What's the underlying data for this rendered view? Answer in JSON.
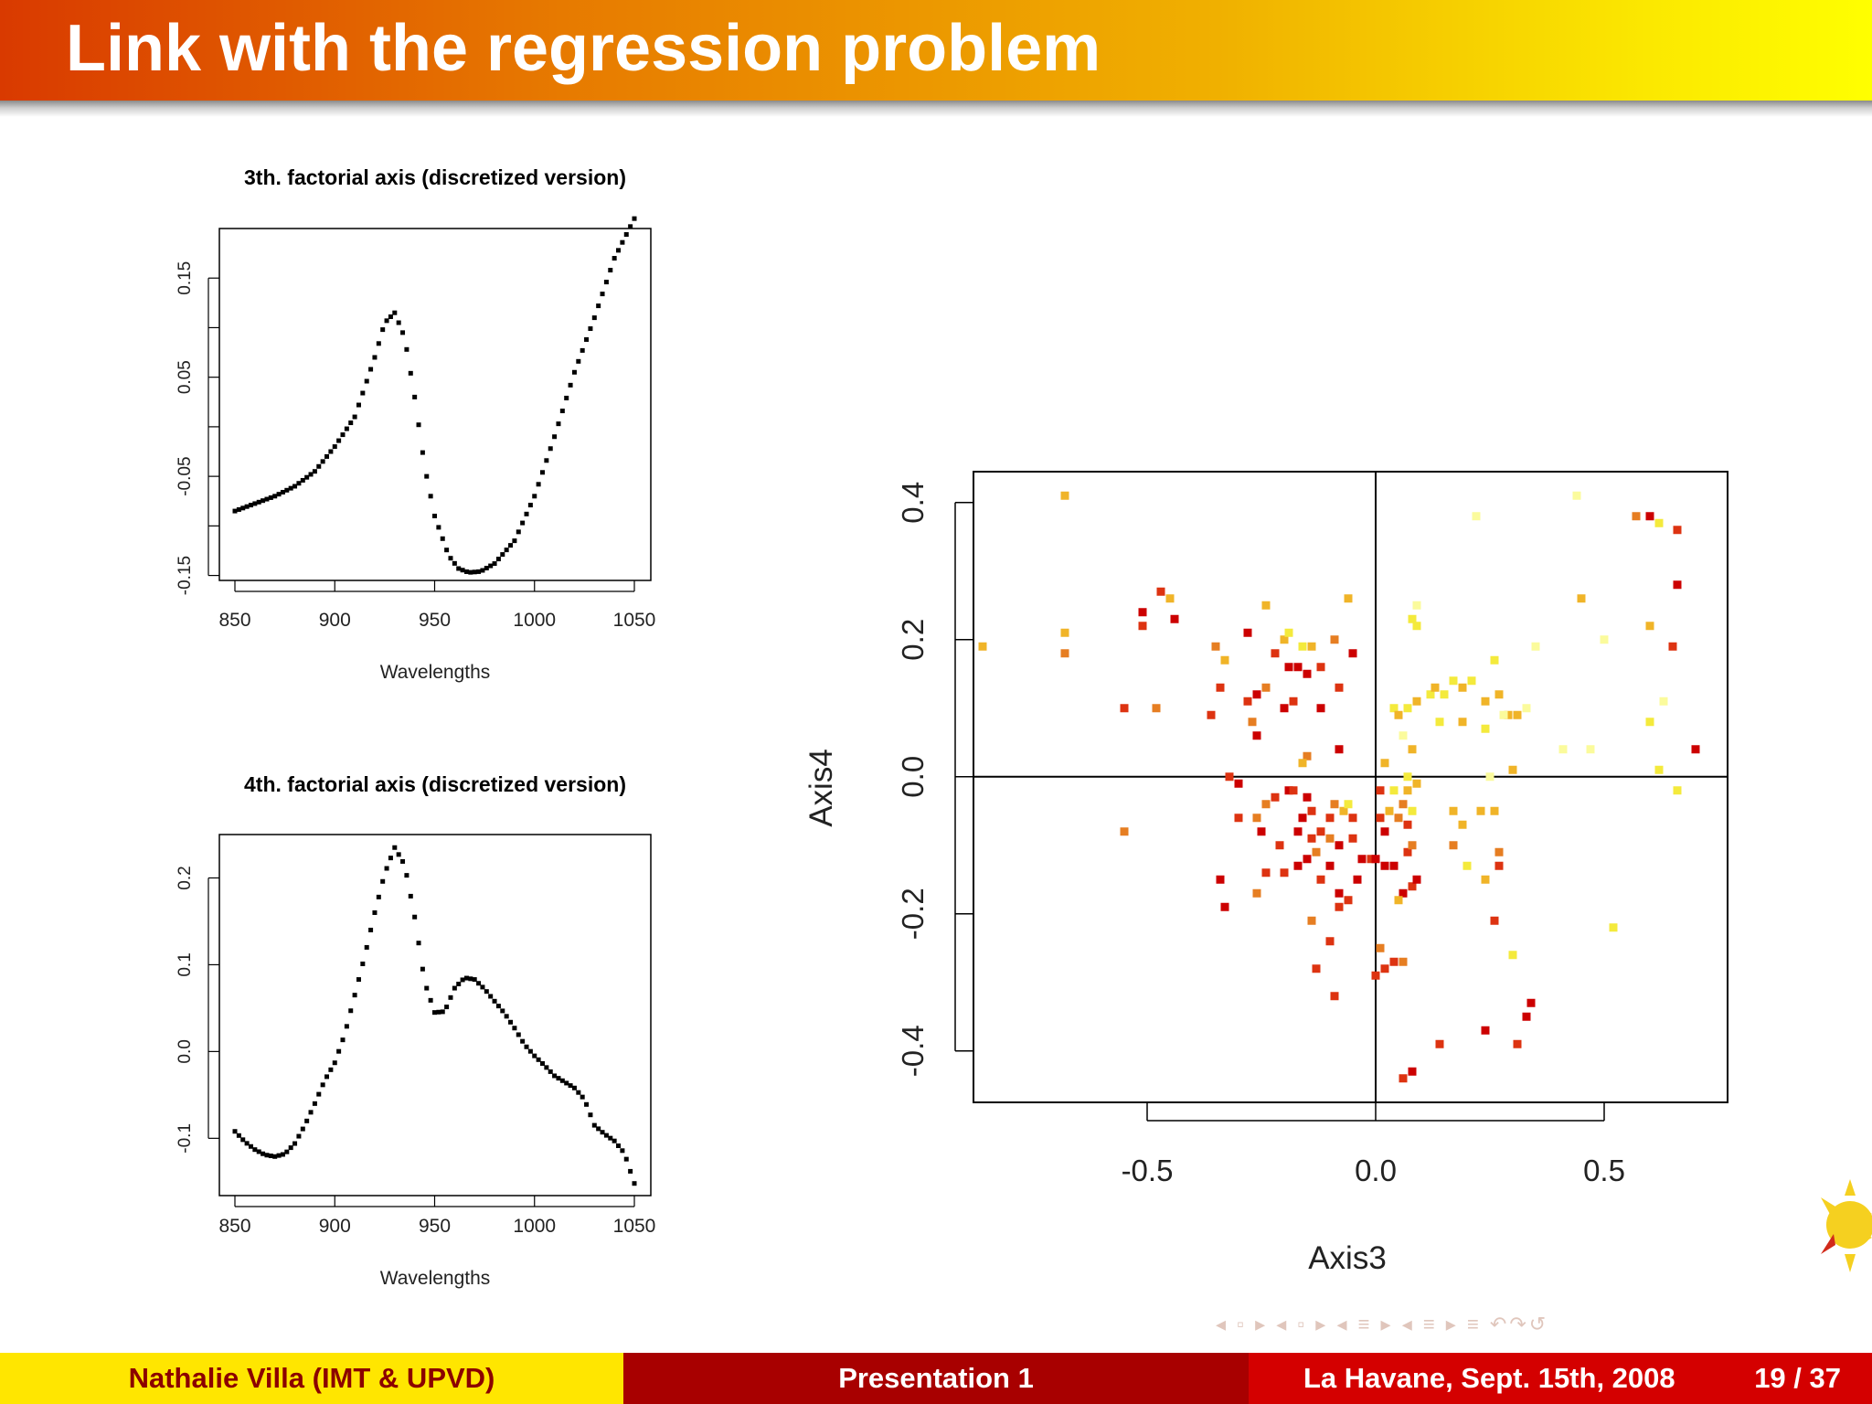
{
  "slide": {
    "title": "Link with the regression problem"
  },
  "footer": {
    "author": "Nathalie Villa  (IMT & UPVD)",
    "presentation": "Presentation 1",
    "place_date": "La Havane, Sept. 15th, 2008",
    "page": "19 / 37"
  },
  "navigation": {
    "symbols": "◂ ▫ ▸ ◂ ▫ ▸ ◂ ≡ ▸ ◂ ≡ ▸  ≡  ↶↷↺"
  },
  "colors": {
    "title_gradient_start": "#d93a00",
    "title_gradient_end": "#ffff00",
    "footer_left": "#ffe600",
    "footer_mid": "#a80000",
    "footer_right": "#d40000",
    "footer_left_text": "#8b0000"
  },
  "chart_data": [
    {
      "type": "scatter",
      "title": "3th. factorial axis (discretized version)",
      "xlabel": "Wavelengths",
      "ylabel": "",
      "xlim": [
        850,
        1050
      ],
      "ylim": [
        -0.155,
        0.2
      ],
      "xticks": [
        "850",
        "900",
        "950",
        "1000",
        "1050"
      ],
      "yticks": [
        "-0.15",
        "-0.05",
        "0.05",
        "0.15"
      ],
      "yticks_minor": [
        -0.1,
        0.0,
        0.1
      ],
      "curve_knots": [
        [
          850,
          -0.085
        ],
        [
          870,
          -0.07
        ],
        [
          880,
          -0.06
        ],
        [
          890,
          -0.045
        ],
        [
          900,
          -0.02
        ],
        [
          910,
          0.01
        ],
        [
          920,
          0.07
        ],
        [
          925,
          0.105
        ],
        [
          930,
          0.115
        ],
        [
          935,
          0.09
        ],
        [
          940,
          0.03
        ],
        [
          945,
          -0.04
        ],
        [
          950,
          -0.09
        ],
        [
          957,
          -0.13
        ],
        [
          962,
          -0.143
        ],
        [
          967,
          -0.147
        ],
        [
          973,
          -0.146
        ],
        [
          980,
          -0.138
        ],
        [
          990,
          -0.115
        ],
        [
          1000,
          -0.07
        ],
        [
          1010,
          -0.01
        ],
        [
          1020,
          0.055
        ],
        [
          1030,
          0.11
        ],
        [
          1040,
          0.17
        ],
        [
          1050,
          0.21
        ]
      ]
    },
    {
      "type": "scatter",
      "title": "4th. factorial axis (discretized version)",
      "xlabel": "Wavelengths",
      "ylabel": "",
      "xlim": [
        850,
        1050
      ],
      "ylim": [
        -0.166,
        0.25
      ],
      "xticks": [
        "850",
        "900",
        "950",
        "1000",
        "1050"
      ],
      "yticks": [
        "-0.1",
        "0.0",
        "0.1",
        "0.2"
      ],
      "curve_knots": [
        [
          850,
          -0.092
        ],
        [
          855,
          -0.104
        ],
        [
          860,
          -0.113
        ],
        [
          865,
          -0.119
        ],
        [
          870,
          -0.121
        ],
        [
          875,
          -0.118
        ],
        [
          880,
          -0.106
        ],
        [
          885,
          -0.085
        ],
        [
          890,
          -0.06
        ],
        [
          895,
          -0.033
        ],
        [
          900,
          -0.013
        ],
        [
          905,
          0.02
        ],
        [
          910,
          0.065
        ],
        [
          915,
          0.11
        ],
        [
          920,
          0.16
        ],
        [
          925,
          0.205
        ],
        [
          930,
          0.235
        ],
        [
          935,
          0.215
        ],
        [
          940,
          0.155
        ],
        [
          945,
          0.08
        ],
        [
          950,
          0.045
        ],
        [
          955,
          0.046
        ],
        [
          960,
          0.073
        ],
        [
          965,
          0.085
        ],
        [
          970,
          0.083
        ],
        [
          975,
          0.072
        ],
        [
          980,
          0.058
        ],
        [
          985,
          0.044
        ],
        [
          990,
          0.027
        ],
        [
          995,
          0.008
        ],
        [
          1000,
          -0.005
        ],
        [
          1005,
          -0.016
        ],
        [
          1010,
          -0.028
        ],
        [
          1015,
          -0.035
        ],
        [
          1020,
          -0.042
        ],
        [
          1025,
          -0.055
        ],
        [
          1030,
          -0.085
        ],
        [
          1035,
          -0.095
        ],
        [
          1040,
          -0.103
        ],
        [
          1045,
          -0.117
        ],
        [
          1050,
          -0.152
        ]
      ]
    },
    {
      "type": "scatter",
      "title": "",
      "xlabel": "Axis3",
      "ylabel": "Axis4",
      "xlim": [
        -0.88,
        0.77
      ],
      "ylim": [
        -0.475,
        0.445
      ],
      "xticks": [
        -0.5,
        0.0,
        0.5
      ],
      "xtick_labels": [
        "-0.5",
        "0.0",
        "0.5"
      ],
      "yticks": [
        -0.4,
        -0.2,
        0.0,
        0.2,
        0.4
      ],
      "ytick_labels": [
        "-0.4",
        "-0.2",
        "0.0",
        "0.2",
        "0.4"
      ],
      "reference_lines": {
        "x": 0,
        "y": 0
      },
      "point_colors": [
        "#cc0000",
        "#dd3311",
        "#e67e22",
        "#f0b428",
        "#f4ea3c",
        "#fbfb9c"
      ],
      "points": [
        [
          -0.68,
          0.41,
          3
        ],
        [
          -0.86,
          0.19,
          3
        ],
        [
          -0.68,
          0.21,
          3
        ],
        [
          -0.68,
          0.18,
          2
        ],
        [
          -0.47,
          0.27,
          1
        ],
        [
          -0.45,
          0.26,
          3
        ],
        [
          -0.51,
          0.24,
          0
        ],
        [
          -0.51,
          0.22,
          1
        ],
        [
          -0.44,
          0.23,
          0
        ],
        [
          -0.55,
          0.1,
          1
        ],
        [
          -0.48,
          0.1,
          2
        ],
        [
          -0.55,
          -0.08,
          2
        ],
        [
          -0.35,
          0.19,
          2
        ],
        [
          -0.33,
          0.17,
          3
        ],
        [
          -0.34,
          0.13,
          1
        ],
        [
          -0.36,
          0.09,
          1
        ],
        [
          -0.28,
          0.21,
          0
        ],
        [
          -0.24,
          0.25,
          3
        ],
        [
          -0.24,
          0.13,
          2
        ],
        [
          -0.26,
          0.12,
          0
        ],
        [
          -0.28,
          0.11,
          1
        ],
        [
          -0.27,
          0.08,
          2
        ],
        [
          -0.26,
          0.06,
          0
        ],
        [
          -0.22,
          0.18,
          1
        ],
        [
          -0.2,
          0.2,
          3
        ],
        [
          -0.19,
          0.21,
          4
        ],
        [
          -0.16,
          0.19,
          4
        ],
        [
          -0.17,
          0.16,
          0
        ],
        [
          -0.19,
          0.16,
          0
        ],
        [
          -0.15,
          0.15,
          0
        ],
        [
          -0.14,
          0.19,
          3
        ],
        [
          -0.12,
          0.16,
          1
        ],
        [
          -0.09,
          0.2,
          2
        ],
        [
          -0.08,
          0.13,
          1
        ],
        [
          -0.12,
          0.1,
          0
        ],
        [
          -0.18,
          0.11,
          1
        ],
        [
          -0.2,
          0.1,
          0
        ],
        [
          -0.06,
          0.26,
          3
        ],
        [
          -0.05,
          0.18,
          0
        ],
        [
          -0.08,
          0.04,
          0
        ],
        [
          -0.15,
          0.03,
          2
        ],
        [
          -0.16,
          0.02,
          3
        ],
        [
          -0.32,
          0.0,
          1
        ],
        [
          -0.3,
          -0.01,
          0
        ],
        [
          -0.24,
          -0.04,
          2
        ],
        [
          -0.22,
          -0.03,
          1
        ],
        [
          -0.19,
          -0.02,
          0
        ],
        [
          -0.18,
          -0.02,
          1
        ],
        [
          -0.15,
          -0.03,
          0
        ],
        [
          -0.14,
          -0.05,
          1
        ],
        [
          -0.1,
          -0.06,
          1
        ],
        [
          -0.09,
          -0.04,
          2
        ],
        [
          -0.07,
          -0.05,
          3
        ],
        [
          -0.06,
          -0.04,
          4
        ],
        [
          -0.05,
          -0.06,
          1
        ],
        [
          -0.3,
          -0.06,
          1
        ],
        [
          -0.26,
          -0.06,
          2
        ],
        [
          -0.25,
          -0.08,
          0
        ],
        [
          -0.21,
          -0.1,
          1
        ],
        [
          -0.17,
          -0.08,
          0
        ],
        [
          -0.16,
          -0.06,
          0
        ],
        [
          -0.12,
          -0.08,
          1
        ],
        [
          -0.1,
          -0.09,
          2
        ],
        [
          -0.08,
          -0.1,
          0
        ],
        [
          -0.05,
          -0.09,
          1
        ],
        [
          -0.03,
          -0.12,
          0
        ],
        [
          -0.01,
          -0.12,
          1
        ],
        [
          -0.34,
          -0.15,
          0
        ],
        [
          -0.33,
          -0.19,
          0
        ],
        [
          -0.26,
          -0.17,
          2
        ],
        [
          -0.24,
          -0.14,
          1
        ],
        [
          -0.2,
          -0.14,
          1
        ],
        [
          -0.17,
          -0.13,
          0
        ],
        [
          -0.15,
          -0.12,
          0
        ],
        [
          -0.14,
          -0.09,
          1
        ],
        [
          -0.13,
          -0.11,
          2
        ],
        [
          -0.12,
          -0.15,
          1
        ],
        [
          -0.1,
          -0.13,
          0
        ],
        [
          -0.08,
          -0.17,
          0
        ],
        [
          -0.06,
          -0.18,
          1
        ],
        [
          -0.04,
          -0.15,
          0
        ],
        [
          -0.14,
          -0.21,
          2
        ],
        [
          -0.1,
          -0.24,
          1
        ],
        [
          -0.08,
          -0.19,
          1
        ],
        [
          -0.13,
          -0.28,
          1
        ],
        [
          -0.09,
          -0.32,
          1
        ],
        [
          0.0,
          -0.12,
          0
        ],
        [
          0.01,
          -0.06,
          1
        ],
        [
          0.02,
          -0.08,
          0
        ],
        [
          0.03,
          -0.05,
          3
        ],
        [
          0.05,
          -0.06,
          2
        ],
        [
          0.06,
          -0.04,
          2
        ],
        [
          0.07,
          -0.07,
          1
        ],
        [
          0.07,
          -0.02,
          3
        ],
        [
          0.08,
          -0.05,
          4
        ],
        [
          0.09,
          -0.01,
          3
        ],
        [
          0.02,
          -0.13,
          0
        ],
        [
          0.04,
          -0.13,
          0
        ],
        [
          0.06,
          -0.17,
          0
        ],
        [
          0.08,
          -0.16,
          1
        ],
        [
          0.07,
          -0.11,
          1
        ],
        [
          0.09,
          -0.15,
          0
        ],
        [
          0.08,
          -0.1,
          2
        ],
        [
          0.05,
          -0.18,
          3
        ],
        [
          0.04,
          -0.27,
          1
        ],
        [
          0.02,
          -0.28,
          1
        ],
        [
          0.0,
          -0.29,
          1
        ],
        [
          0.01,
          -0.25,
          2
        ],
        [
          0.01,
          -0.02,
          1
        ],
        [
          0.02,
          0.02,
          3
        ],
        [
          0.04,
          -0.02,
          4
        ],
        [
          0.06,
          0.06,
          5
        ],
        [
          0.07,
          0.0,
          4
        ],
        [
          0.08,
          0.04,
          3
        ],
        [
          0.04,
          0.1,
          4
        ],
        [
          0.05,
          0.09,
          3
        ],
        [
          0.07,
          0.1,
          4
        ],
        [
          0.09,
          0.11,
          3
        ],
        [
          0.12,
          0.12,
          4
        ],
        [
          0.13,
          0.13,
          3
        ],
        [
          0.15,
          0.12,
          4
        ],
        [
          0.17,
          0.14,
          4
        ],
        [
          0.19,
          0.13,
          3
        ],
        [
          0.21,
          0.14,
          4
        ],
        [
          0.24,
          0.11,
          3
        ],
        [
          0.27,
          0.12,
          3
        ],
        [
          0.26,
          0.17,
          4
        ],
        [
          0.29,
          0.09,
          3
        ],
        [
          0.31,
          0.09,
          3
        ],
        [
          0.09,
          0.22,
          4
        ],
        [
          0.09,
          0.25,
          5
        ],
        [
          0.08,
          0.23,
          4
        ],
        [
          0.14,
          0.08,
          4
        ],
        [
          0.19,
          0.08,
          3
        ],
        [
          0.24,
          0.07,
          4
        ],
        [
          0.22,
          0.38,
          5
        ],
        [
          0.28,
          0.09,
          5
        ],
        [
          0.25,
          0.0,
          5
        ],
        [
          0.33,
          0.1,
          5
        ],
        [
          0.3,
          0.01,
          3
        ],
        [
          0.41,
          0.04,
          5
        ],
        [
          0.44,
          0.41,
          5
        ],
        [
          0.35,
          0.19,
          5
        ],
        [
          0.06,
          -0.27,
          2
        ],
        [
          0.17,
          -0.05,
          3
        ],
        [
          0.19,
          -0.07,
          3
        ],
        [
          0.17,
          -0.1,
          2
        ],
        [
          0.2,
          -0.13,
          4
        ],
        [
          0.24,
          -0.15,
          3
        ],
        [
          0.26,
          -0.05,
          3
        ],
        [
          0.27,
          -0.11,
          2
        ],
        [
          0.27,
          -0.13,
          1
        ],
        [
          0.26,
          -0.21,
          1
        ],
        [
          0.3,
          -0.26,
          4
        ],
        [
          0.34,
          -0.33,
          0
        ],
        [
          0.33,
          -0.35,
          0
        ],
        [
          0.31,
          -0.39,
          1
        ],
        [
          0.24,
          -0.37,
          0
        ],
        [
          0.14,
          -0.39,
          1
        ],
        [
          0.08,
          -0.43,
          0
        ],
        [
          0.06,
          -0.44,
          1
        ],
        [
          0.23,
          -0.05,
          3
        ],
        [
          0.45,
          0.26,
          3
        ],
        [
          0.52,
          -0.22,
          4
        ],
        [
          0.57,
          0.38,
          2
        ],
        [
          0.6,
          0.38,
          0
        ],
        [
          0.62,
          0.37,
          4
        ],
        [
          0.66,
          0.36,
          1
        ],
        [
          0.66,
          0.28,
          0
        ],
        [
          0.65,
          0.19,
          1
        ],
        [
          0.6,
          0.22,
          3
        ],
        [
          0.63,
          0.11,
          5
        ],
        [
          0.6,
          0.08,
          4
        ],
        [
          0.62,
          0.01,
          4
        ],
        [
          0.66,
          -0.02,
          4
        ],
        [
          0.7,
          0.04,
          0
        ],
        [
          0.47,
          0.04,
          5
        ],
        [
          0.5,
          0.2,
          5
        ]
      ]
    }
  ]
}
